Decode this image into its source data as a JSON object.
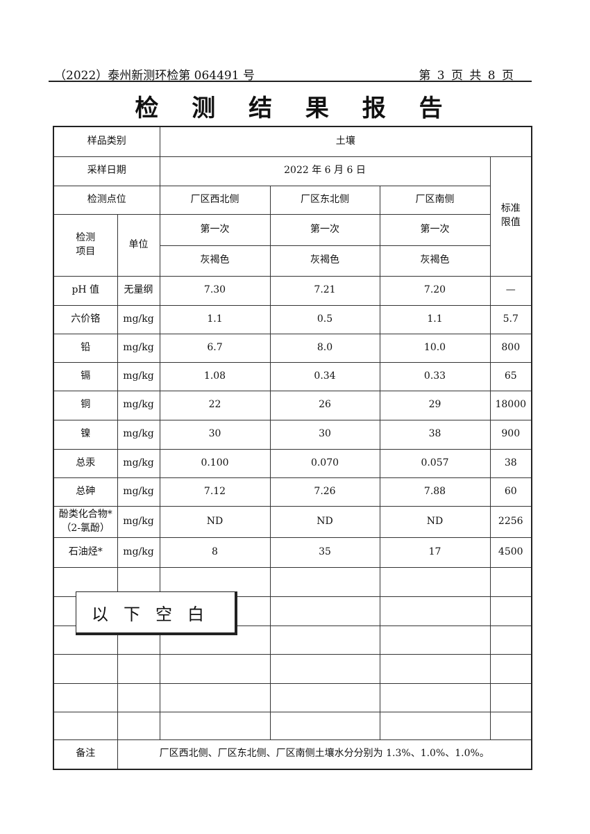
{
  "header": {
    "report_no": "（2022）泰州新测环检第 064491 号",
    "page": "第 3 页 共 8 页"
  },
  "title": "检 测 结 果 报 告",
  "table": {
    "sample_type_label": "样品类别",
    "sample_type": "土壤",
    "date_label": "采样日期",
    "date": "2022 年 6 月 6 日",
    "point_label": "检测点位",
    "points": [
      "厂区西北侧",
      "厂区东北侧",
      "厂区南侧"
    ],
    "standard_label": "标准限值",
    "item_label": "检测项目",
    "unit_label": "单位",
    "times": [
      "第一次",
      "第一次",
      "第一次"
    ],
    "colors": [
      "灰褐色",
      "灰褐色",
      "灰褐色"
    ],
    "rows": [
      {
        "item": "pH 值",
        "unit": "无量纲",
        "v": [
          "7.30",
          "7.21",
          "7.20"
        ],
        "std": "—"
      },
      {
        "item": "六价铬",
        "unit": "mg/kg",
        "v": [
          "1.1",
          "0.5",
          "1.1"
        ],
        "std": "5.7"
      },
      {
        "item": "铅",
        "unit": "mg/kg",
        "v": [
          "6.7",
          "8.0",
          "10.0"
        ],
        "std": "800"
      },
      {
        "item": "镉",
        "unit": "mg/kg",
        "v": [
          "1.08",
          "0.34",
          "0.33"
        ],
        "std": "65"
      },
      {
        "item": "铜",
        "unit": "mg/kg",
        "v": [
          "22",
          "26",
          "29"
        ],
        "std": "18000"
      },
      {
        "item": "镍",
        "unit": "mg/kg",
        "v": [
          "30",
          "30",
          "38"
        ],
        "std": "900"
      },
      {
        "item": "总汞",
        "unit": "mg/kg",
        "v": [
          "0.100",
          "0.070",
          "0.057"
        ],
        "std": "38"
      },
      {
        "item": "总砷",
        "unit": "mg/kg",
        "v": [
          "7.12",
          "7.26",
          "7.88"
        ],
        "std": "60"
      },
      {
        "item": "酚类化合物*（2-氯酚）",
        "unit": "mg/kg",
        "v": [
          "ND",
          "ND",
          "ND"
        ],
        "std": "2256"
      },
      {
        "item": "石油烃*",
        "unit": "mg/kg",
        "v": [
          "8",
          "35",
          "17"
        ],
        "std": "4500"
      }
    ],
    "remarks_label": "备注",
    "remarks": "厂区西北侧、厂区东北侧、厂区南侧土壤水分分别为 1.3%、1.0%、1.0%。"
  },
  "blank_stamp": "以下空白"
}
